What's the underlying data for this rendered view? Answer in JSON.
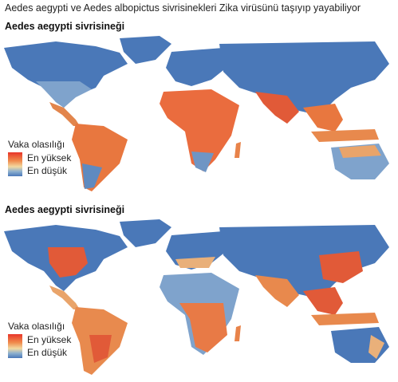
{
  "title": "Aedes aegypti ve Aedes albopictus sivrisinekleri Zika virüsünü taşıyıp yayabiliyor",
  "panels": [
    {
      "title": "Aedes aegypti sivrisineği",
      "legend": {
        "title": "Vaka olasılığı",
        "high": "En yüksek",
        "low": "En düşük"
      }
    },
    {
      "title": "Aedes aegypti sivrisineği",
      "legend": {
        "title": "Vaka olasılığı",
        "high": "En yüksek",
        "low": "En düşük"
      }
    }
  ],
  "colors": {
    "low": "#4a78b8",
    "mid": "#f2d9a0",
    "high": "#e8352a"
  }
}
